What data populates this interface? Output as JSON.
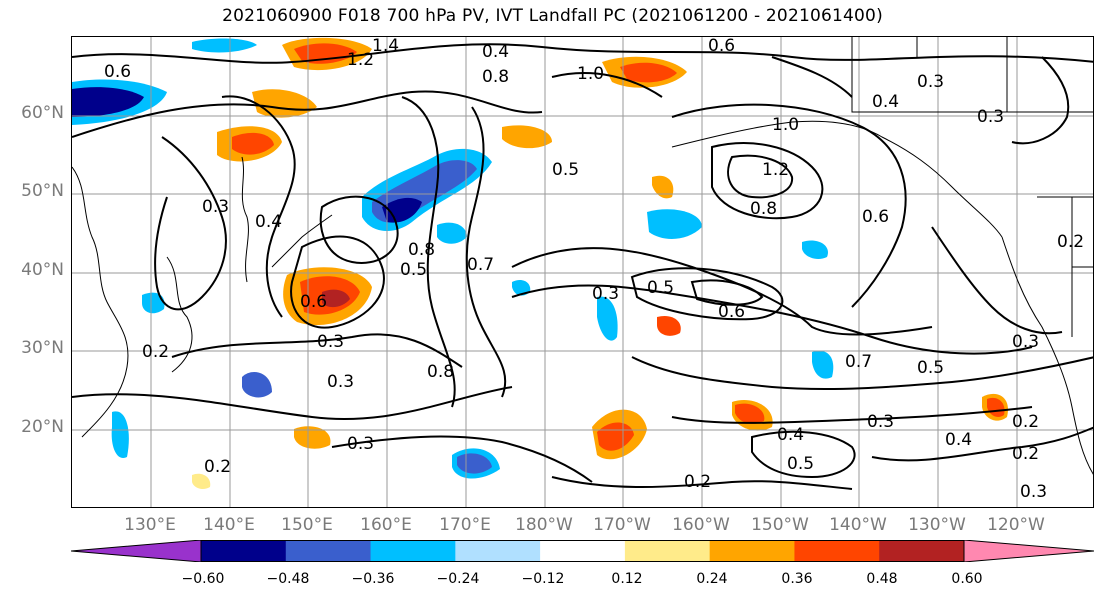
{
  "title": "2021060900 F018 700 hPa PV, IVT Landfall PC (2021061200 - 2021061400)",
  "lat_labels": [
    "60°N",
    "50°N",
    "40°N",
    "30°N",
    "20°N"
  ],
  "lon_labels": [
    "130°E",
    "140°E",
    "150°E",
    "160°E",
    "170°E",
    "180°W",
    "170°W",
    "160°W",
    "150°W",
    "140°W",
    "130°W",
    "120°W"
  ],
  "contour_labels": [
    "0.6",
    "1.2",
    "1.4",
    "0.4",
    "0.8",
    "1.0",
    "0.6",
    "0.3",
    "0.4",
    "0.3",
    "0.5",
    "1.0",
    "1.2",
    "0.8",
    "0.6",
    "0.2",
    "0.3",
    "0.4",
    "0.8",
    "0.5",
    "0.7",
    "0.3",
    "0.5",
    "0.6",
    "0.6",
    "0.3",
    "0.2",
    "0.3",
    "0.8",
    "0.3",
    "0.7",
    "0.5",
    "0.3",
    "0.4",
    "0.5",
    "0.2",
    "0.2",
    "0.3",
    "0.4",
    "0.2",
    "0.3",
    "0.2"
  ],
  "colorbar": {
    "ticks": [
      "−0.60",
      "−0.48",
      "−0.36",
      "−0.24",
      "−0.12",
      "0.12",
      "0.24",
      "0.36",
      "0.48",
      "0.60"
    ],
    "colors": [
      "#9932cc",
      "#00008b",
      "#3a5fcd",
      "#00bfff",
      "#b0e0ff",
      "#ffffff",
      "#ffeb8a",
      "#ffa500",
      "#ff4500",
      "#b22222",
      "#ff88b0"
    ]
  }
}
